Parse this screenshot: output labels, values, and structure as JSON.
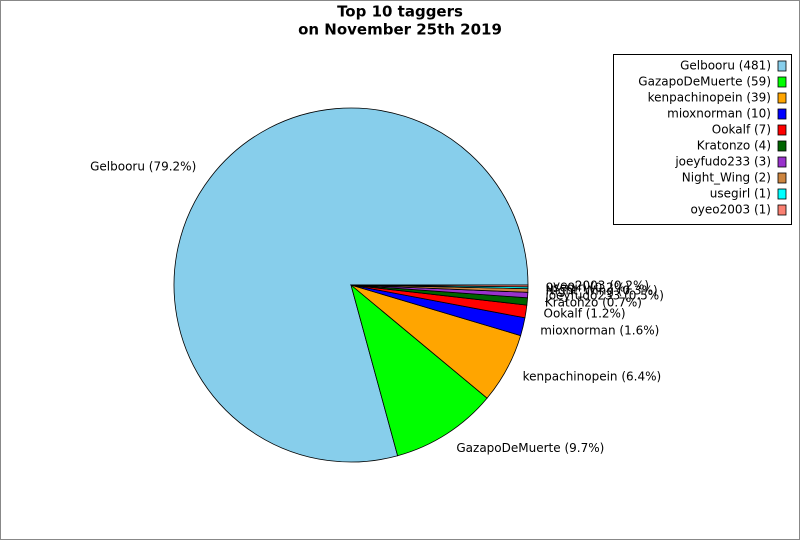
{
  "chart_data": {
    "type": "pie",
    "title": "Top 10 taggers",
    "subtitle": "on November 25th 2019",
    "values": [
      481,
      59,
      39,
      10,
      7,
      4,
      3,
      2,
      1,
      1
    ],
    "value_labels": [
      "Gelbooru (79.2%)",
      "GazapoDeMuerte (9.7%)",
      "kenpachinopein (6.4%)",
      "mioxnorman (1.6%)",
      "Ookalf (1.2%)",
      "Kratonzo (0.7%)",
      "joeyfudo233 (0.5%)",
      "Night_Wing (0.3%)",
      "usegirl (0.2%)",
      "oyeo2003 (0.2%)"
    ],
    "legend_labels": [
      "Gelbooru (481)",
      "GazapoDeMuerte (59)",
      "kenpachinopein (39)",
      "mioxnorman (10)",
      "Ookalf (7)",
      "Kratonzo (4)",
      "joeyfudo233 (3)",
      "Night_Wing (2)",
      "usegirl (1)",
      "oyeo2003 (1)"
    ],
    "colors": [
      "#87ceeb",
      "#00ff00",
      "#ffa500",
      "#0000ff",
      "#ff0000",
      "#006400",
      "#9932cc",
      "#cd853f",
      "#00ffff",
      "#fa8072"
    ],
    "legend": "upper right"
  }
}
